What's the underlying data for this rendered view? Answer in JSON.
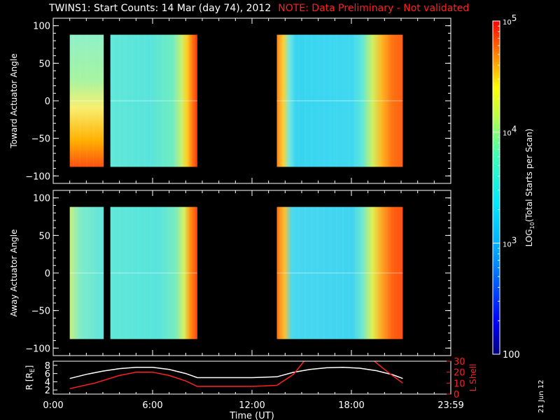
{
  "title": {
    "main": "TWINS1: Start Counts: 14 Mar (day  74), 2012",
    "note": "NOTE: Data Preliminary - Not validated"
  },
  "stamp": "21 Jun 12",
  "colors": {
    "background": "#000000",
    "axes": "#ffffff",
    "note": "#ff2020",
    "r_line": "#ffffff",
    "lshell_line": "#ff2020"
  },
  "chart_data": [
    {
      "type": "heatmap",
      "ylabel": "Toward Actuator Angle",
      "ylim": [
        -110,
        110
      ],
      "yticks": [
        100,
        50,
        0,
        -50,
        -100
      ],
      "x_unit": "hours UT",
      "xlim": [
        0,
        24
      ],
      "data_segments": [
        {
          "x": [
            1.0,
            3.05
          ],
          "y": [
            -88,
            88
          ],
          "style": "toward-a"
        },
        {
          "x": [
            3.45,
            8.7
          ],
          "y": [
            -88,
            88
          ],
          "style": "toward-b"
        },
        {
          "x": [
            13.5,
            21.1
          ],
          "y": [
            -88,
            88
          ],
          "style": "toward-c"
        }
      ]
    },
    {
      "type": "heatmap",
      "ylabel": "Away Actuator Angle",
      "ylim": [
        -110,
        110
      ],
      "yticks": [
        100,
        50,
        0,
        -50,
        -100
      ],
      "x_unit": "hours UT",
      "xlim": [
        0,
        24
      ],
      "data_segments": [
        {
          "x": [
            1.0,
            3.05
          ],
          "y": [
            -88,
            88
          ],
          "style": "away-a"
        },
        {
          "x": [
            3.45,
            8.7
          ],
          "y": [
            -88,
            88
          ],
          "style": "away-b"
        },
        {
          "x": [
            13.5,
            21.1
          ],
          "y": [
            -88,
            88
          ],
          "style": "away-c"
        }
      ]
    },
    {
      "type": "line",
      "xlabel": "Time (UT)",
      "xlim": [
        0,
        24
      ],
      "xticks": [
        {
          "v": 0,
          "label": "0:00"
        },
        {
          "v": 6,
          "label": "6:00"
        },
        {
          "v": 12,
          "label": "12:00"
        },
        {
          "v": 18,
          "label": "18:00"
        },
        {
          "v": 24,
          "label": "23:59"
        }
      ],
      "left_axis": {
        "label": "R [R",
        "label_sub": "E",
        "label_end": "]",
        "ylim": [
          1,
          9
        ],
        "ticks": [
          2,
          4,
          6,
          8
        ]
      },
      "right_axis": {
        "label": "L Shell",
        "ylim": [
          0,
          30
        ],
        "ticks": [
          0,
          10,
          20,
          30
        ]
      },
      "series": [
        {
          "axis": "left",
          "color": "#ffffff",
          "x": [
            1.0,
            2.0,
            3.0,
            4.0,
            5.0,
            6.0,
            7.0,
            8.0,
            8.7,
            10,
            12,
            13.5,
            14.5,
            15.5,
            16.5,
            17.5,
            18.5,
            19.5,
            20.5,
            21.1
          ],
          "y": [
            4.8,
            5.8,
            6.6,
            7.2,
            7.5,
            7.5,
            7.0,
            6.0,
            5.0,
            5.0,
            5.0,
            5.2,
            6.3,
            7.0,
            7.4,
            7.5,
            7.3,
            6.7,
            5.7,
            4.8
          ]
        },
        {
          "axis": "right",
          "color": "#ff2020",
          "x": [
            1.0,
            2.5,
            4.0,
            5.0,
            6.0,
            7.0,
            8.0,
            8.7,
            10,
            12,
            13.5,
            14.5,
            15.2
          ],
          "y": [
            5,
            10,
            17,
            20,
            20,
            17,
            12,
            7,
            7,
            7,
            8,
            18,
            31
          ]
        },
        {
          "axis": "right",
          "color": "#ff2020",
          "x": [
            19.3,
            20.2,
            21.1
          ],
          "y": [
            31,
            20,
            10
          ]
        }
      ]
    },
    {
      "type": "colorbar",
      "label": "LOG",
      "label_sub": "10",
      "label_end": "(Total Starts per Scan)",
      "scale": "log",
      "range": [
        100,
        100000
      ],
      "ticks": [
        {
          "v": 100,
          "base": "100",
          "exp": ""
        },
        {
          "v": 1000,
          "base": "10",
          "exp": "3"
        },
        {
          "v": 10000,
          "base": "10",
          "exp": "4"
        },
        {
          "v": 100000,
          "base": "10",
          "exp": "5"
        }
      ]
    }
  ]
}
